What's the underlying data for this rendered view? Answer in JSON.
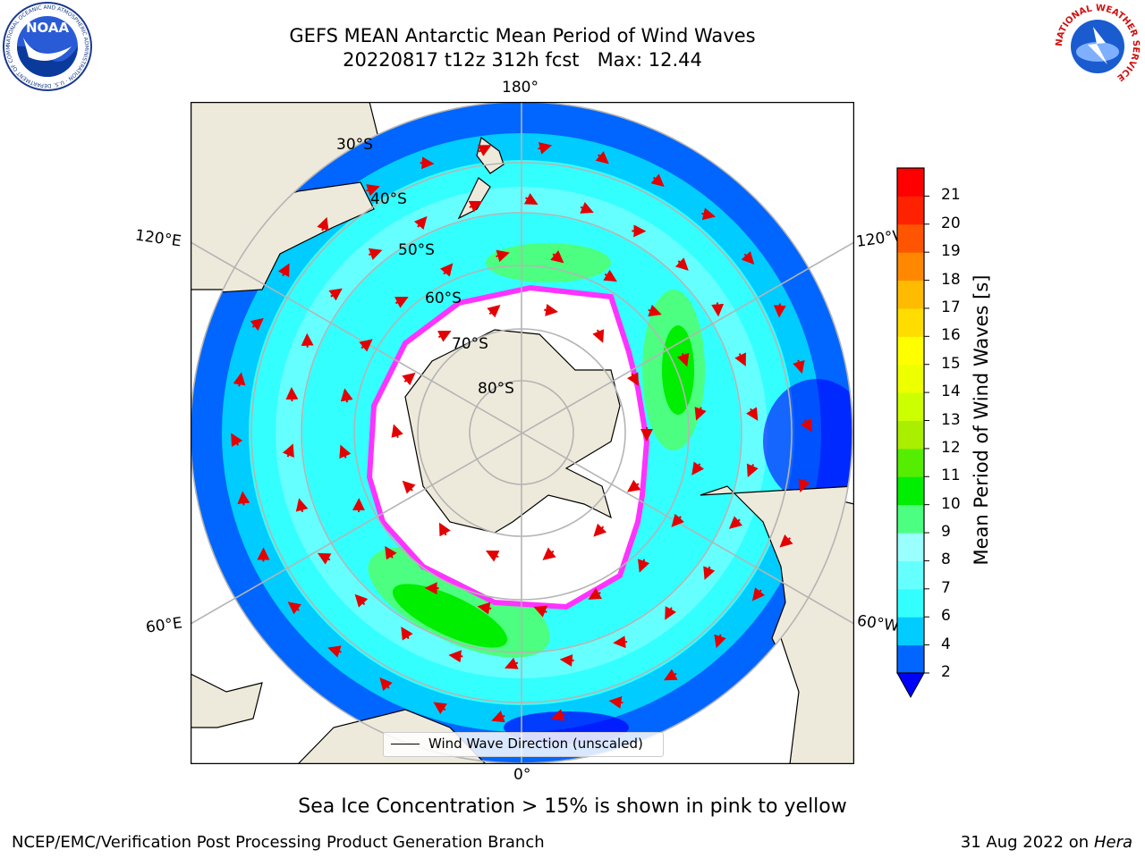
{
  "header": {
    "title_line1": "GEFS MEAN Antarctic Mean Period of Wind Waves",
    "title_line2": "20220817 t12z 312h fcst   Max: 12.44"
  },
  "logos": {
    "left": "NOAA",
    "left_ring": "NATIONAL OCEANIC AND ATMOSPHERIC ADMINISTRATION · U.S. DEPARTMENT OF COMMERCE",
    "right_ring": "NATIONAL WEATHER SERVICE"
  },
  "map": {
    "projection": "south-polar-stereographic",
    "longitude_labels": {
      "top": "180°",
      "bottom": "0°",
      "upper_left": "120°E",
      "lower_left": "60°E",
      "upper_right": "120°W",
      "lower_right": "60°W"
    },
    "latitude_labels": [
      "30°S",
      "40°S",
      "50°S",
      "60°S",
      "70°S",
      "80°S"
    ],
    "legend_label": "Wind Wave Direction (unscaled)",
    "colors": {
      "land": "#eeeadb",
      "ice_edge": "#ff33ff",
      "arrows": "#e30000",
      "grid": "#b4b4b4"
    }
  },
  "colorbar": {
    "label": "Mean Period of Wind Waves [s]",
    "ticks": [
      "2",
      "4",
      "6",
      "7",
      "8",
      "9",
      "10",
      "11",
      "12",
      "13",
      "14",
      "15",
      "16",
      "17",
      "18",
      "19",
      "20",
      "21"
    ],
    "colors": [
      "#0066ff",
      "#00ccff",
      "#33ffff",
      "#66ffff",
      "#99ffff",
      "#4dff80",
      "#00ee00",
      "#55ee00",
      "#aaee00",
      "#ccff00",
      "#eeff00",
      "#ffff00",
      "#ffdd00",
      "#ffbb00",
      "#ff8800",
      "#ff5500",
      "#ff2200",
      "#ff0000"
    ],
    "under_color": "#0000ff"
  },
  "notes": {
    "sea_ice": "Sea Ice Concentration > 15% is shown in pink to yellow"
  },
  "footer": {
    "left": "NCEP/EMC/Verification Post Processing Product Generation Branch",
    "right_date": "31 Aug 2022 on",
    "right_host": "Hera"
  }
}
